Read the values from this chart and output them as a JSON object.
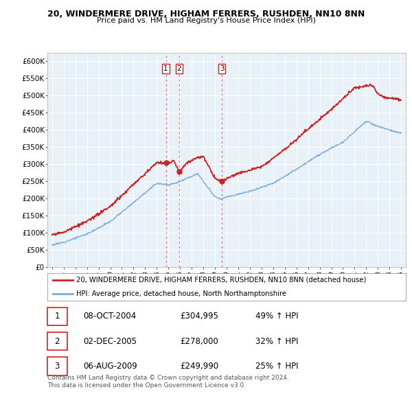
{
  "title": "20, WINDERMERE DRIVE, HIGHAM FERRERS, RUSHDEN, NN10 8NN",
  "subtitle": "Price paid vs. HM Land Registry's House Price Index (HPI)",
  "ylabel_ticks": [
    "£0",
    "£50K",
    "£100K",
    "£150K",
    "£200K",
    "£250K",
    "£300K",
    "£350K",
    "£400K",
    "£450K",
    "£500K",
    "£550K",
    "£600K"
  ],
  "ytick_values": [
    0,
    50000,
    100000,
    150000,
    200000,
    250000,
    300000,
    350000,
    400000,
    450000,
    500000,
    550000,
    600000
  ],
  "ylim": [
    0,
    625000
  ],
  "xlim": [
    1994.6,
    2025.4
  ],
  "transactions": [
    {
      "label": "1",
      "date_num": 2004.78,
      "price": 304995,
      "pct": "49% ↑ HPI",
      "date_str": "08-OCT-2004"
    },
    {
      "label": "2",
      "date_num": 2005.92,
      "price": 278000,
      "pct": "32% ↑ HPI",
      "date_str": "02-DEC-2005"
    },
    {
      "label": "3",
      "date_num": 2009.59,
      "price": 249990,
      "pct": "25% ↑ HPI",
      "date_str": "06-AUG-2009"
    }
  ],
  "vline_color": "#e87070",
  "hpi_color": "#7aabdc",
  "sold_color": "#cc2222",
  "legend_label_sold": "20, WINDERMERE DRIVE, HIGHAM FERRERS, RUSHDEN, NN10 8NN (detached house)",
  "legend_label_hpi": "HPI: Average price, detached house, North Northamptonshire",
  "footer1": "Contains HM Land Registry data © Crown copyright and database right 2024.",
  "footer2": "This data is licensed under the Open Government Licence v3.0.",
  "table_rows": [
    [
      "1",
      "08-OCT-2004",
      "£304,995",
      "49% ↑ HPI"
    ],
    [
      "2",
      "02-DEC-2005",
      "£278,000",
      "32% ↑ HPI"
    ],
    [
      "3",
      "06-AUG-2009",
      "£249,990",
      "25% ↑ HPI"
    ]
  ],
  "bg_color": "#e8f0f8"
}
